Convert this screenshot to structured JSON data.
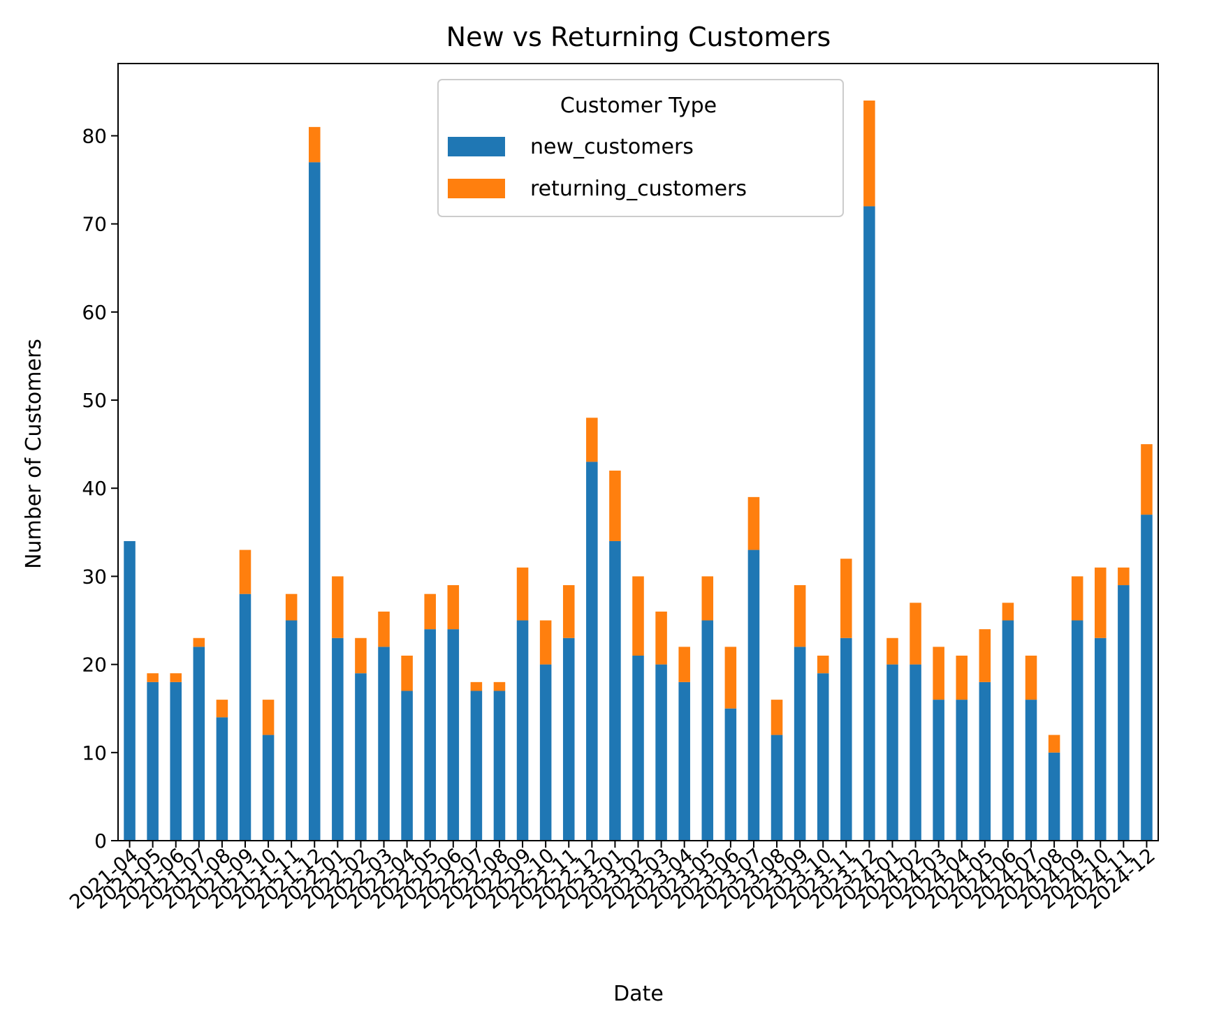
{
  "chart_data": {
    "type": "bar",
    "stacked": true,
    "title": "New vs Returning Customers",
    "xlabel": "Date",
    "ylabel": "Number of Customers",
    "ylim": [
      0,
      88.2
    ],
    "yticks": [
      0,
      10,
      20,
      30,
      40,
      50,
      60,
      70,
      80
    ],
    "grid": false,
    "legend": {
      "title": "Customer Type",
      "position": "top-center"
    },
    "categories": [
      "2021-04",
      "2021-05",
      "2021-06",
      "2021-07",
      "2021-08",
      "2021-09",
      "2021-10",
      "2021-11",
      "2021-12",
      "2022-01",
      "2022-02",
      "2022-03",
      "2022-04",
      "2022-05",
      "2022-06",
      "2022-07",
      "2022-08",
      "2022-09",
      "2022-10",
      "2022-11",
      "2022-12",
      "2023-01",
      "2023-02",
      "2023-03",
      "2023-04",
      "2023-05",
      "2023-06",
      "2023-07",
      "2023-08",
      "2023-09",
      "2023-10",
      "2023-11",
      "2023-12",
      "2024-01",
      "2024-02",
      "2024-03",
      "2024-04",
      "2024-05",
      "2024-06",
      "2024-07",
      "2024-08",
      "2024-09",
      "2024-10",
      "2024-11",
      "2024-12"
    ],
    "series": [
      {
        "name": "new_customers",
        "color": "#1f77b4",
        "values": [
          34,
          18,
          18,
          22,
          14,
          28,
          12,
          25,
          77,
          23,
          19,
          22,
          17,
          24,
          24,
          17,
          17,
          25,
          20,
          23,
          43,
          34,
          21,
          20,
          18,
          25,
          15,
          33,
          12,
          22,
          19,
          23,
          72,
          20,
          20,
          16,
          16,
          18,
          25,
          16,
          10,
          25,
          23,
          29,
          37
        ]
      },
      {
        "name": "returning_customers",
        "color": "#ff7f0e",
        "values": [
          0,
          1,
          1,
          1,
          2,
          5,
          4,
          3,
          4,
          7,
          4,
          4,
          4,
          4,
          5,
          1,
          1,
          6,
          5,
          6,
          5,
          8,
          9,
          6,
          4,
          5,
          7,
          6,
          4,
          7,
          2,
          9,
          12,
          3,
          7,
          6,
          5,
          6,
          2,
          5,
          2,
          5,
          8,
          2,
          8
        ]
      }
    ]
  }
}
